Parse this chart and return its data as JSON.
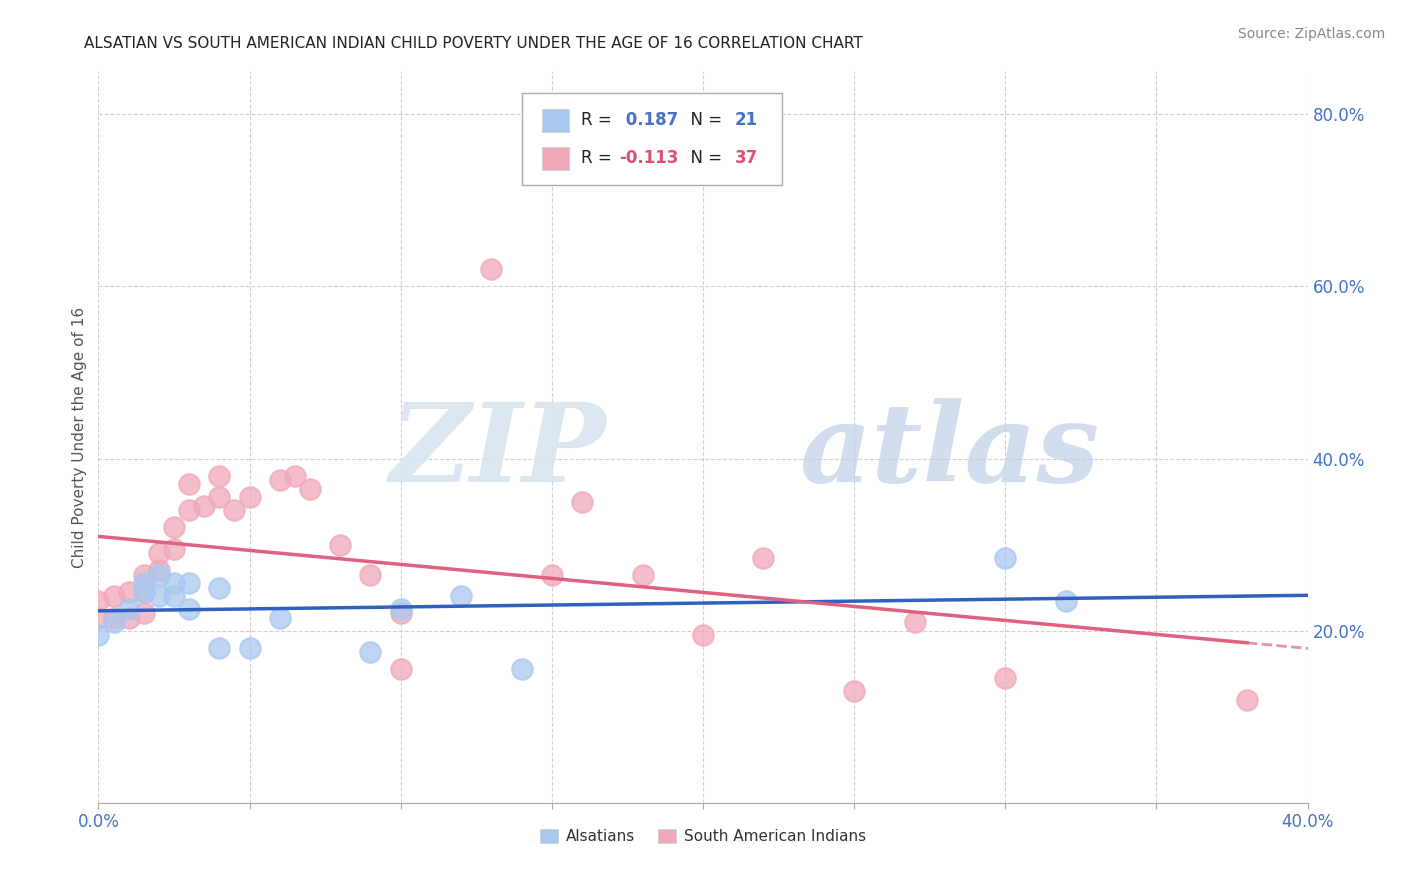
{
  "title": "ALSATIAN VS SOUTH AMERICAN INDIAN CHILD POVERTY UNDER THE AGE OF 16 CORRELATION CHART",
  "source": "Source: ZipAtlas.com",
  "ylabel": "Child Poverty Under the Age of 16",
  "xlim": [
    0.0,
    0.4
  ],
  "ylim": [
    0.0,
    0.85
  ],
  "xticks": [
    0.0,
    0.05,
    0.1,
    0.15,
    0.2,
    0.25,
    0.3,
    0.35,
    0.4
  ],
  "yticks": [
    0.0,
    0.2,
    0.4,
    0.6,
    0.8
  ],
  "xtick_labels": [
    "0.0%",
    "",
    "",
    "",
    "",
    "",
    "",
    "",
    "40.0%"
  ],
  "ytick_labels_right": [
    "",
    "20.0%",
    "40.0%",
    "60.0%",
    "80.0%"
  ],
  "grid_color": "#cccccc",
  "background_color": "#ffffff",
  "alsatian_color": "#a8c8f0",
  "sai_color": "#f0a8b8",
  "alsatian_R": 0.187,
  "alsatian_N": 21,
  "sai_R": -0.113,
  "sai_N": 37,
  "alsatian_line_color": "#3060c0",
  "sai_line_color": "#e06080",
  "alsatian_x": [
    0.0,
    0.005,
    0.01,
    0.015,
    0.015,
    0.02,
    0.02,
    0.025,
    0.025,
    0.03,
    0.03,
    0.04,
    0.04,
    0.05,
    0.06,
    0.09,
    0.1,
    0.12,
    0.14,
    0.3,
    0.32
  ],
  "alsatian_y": [
    0.195,
    0.21,
    0.225,
    0.255,
    0.245,
    0.265,
    0.24,
    0.255,
    0.24,
    0.255,
    0.225,
    0.25,
    0.18,
    0.18,
    0.215,
    0.175,
    0.225,
    0.24,
    0.155,
    0.285,
    0.235
  ],
  "sai_x": [
    0.0,
    0.0,
    0.005,
    0.005,
    0.01,
    0.01,
    0.015,
    0.015,
    0.015,
    0.02,
    0.02,
    0.025,
    0.025,
    0.03,
    0.03,
    0.035,
    0.04,
    0.04,
    0.045,
    0.05,
    0.06,
    0.065,
    0.07,
    0.08,
    0.09,
    0.1,
    0.1,
    0.13,
    0.15,
    0.16,
    0.18,
    0.2,
    0.22,
    0.25,
    0.27,
    0.3,
    0.38
  ],
  "sai_y": [
    0.235,
    0.215,
    0.24,
    0.215,
    0.245,
    0.215,
    0.265,
    0.245,
    0.22,
    0.29,
    0.27,
    0.32,
    0.295,
    0.37,
    0.34,
    0.345,
    0.38,
    0.355,
    0.34,
    0.355,
    0.375,
    0.38,
    0.365,
    0.3,
    0.265,
    0.155,
    0.22,
    0.62,
    0.265,
    0.35,
    0.265,
    0.195,
    0.285,
    0.13,
    0.21,
    0.145,
    0.12
  ],
  "sai_line_solid_end": 0.27,
  "sai_line_dash_start": 0.27
}
